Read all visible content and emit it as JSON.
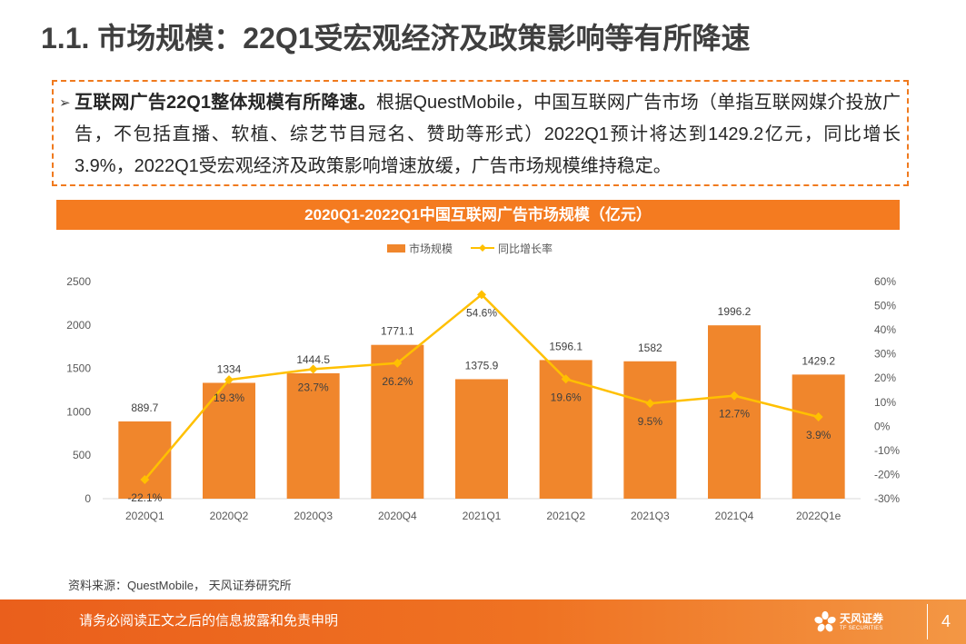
{
  "slide": {
    "title": "1.1. 市场规模：22Q1受宏观经济及政策影响等有所降速",
    "summary": {
      "bullet": "➢",
      "lead": "互联网广告22Q1整体规模有所降速。",
      "body": "根据QuestMobile，中国互联网广告市场（单指互联网媒介投放广告，不包括直播、软植、综艺节目冠名、赞助等形式）2022Q1预计将达到1429.2亿元，同比增长3.9%，2022Q1受宏观经济及政策影响增速放缓，广告市场规模维持稳定。"
    },
    "source": "资料来源：QuestMobile， 天风证券研究所"
  },
  "chart_data": {
    "type": "bar",
    "title": "2020Q1-2022Q1中国互联网广告市场规模（亿元）",
    "categories": [
      "2020Q1",
      "2020Q2",
      "2020Q3",
      "2020Q4",
      "2021Q1",
      "2021Q2",
      "2021Q3",
      "2021Q4",
      "2022Q1e"
    ],
    "series": [
      {
        "name": "市场规模",
        "type": "bar",
        "axis": "left",
        "values": [
          889.7,
          1334,
          1444.5,
          1771.1,
          1375.9,
          1596.1,
          1582,
          1996.2,
          1429.2
        ],
        "color": "#F0862C"
      },
      {
        "name": "同比增长率",
        "type": "line",
        "axis": "right",
        "unit": "%",
        "marker": "diamond",
        "values": [
          -22.1,
          19.3,
          23.7,
          26.2,
          54.6,
          19.6,
          9.5,
          12.7,
          3.9
        ],
        "color": "#FFC000"
      }
    ],
    "xlabel": "",
    "ylabel": "",
    "ylim": [
      0,
      2500
    ],
    "yticks": [
      0,
      500,
      1000,
      1500,
      2000,
      2500
    ],
    "y2lim": [
      -30,
      60
    ],
    "y2ticks": [
      -30,
      -20,
      -10,
      0,
      10,
      20,
      30,
      40,
      50,
      60
    ],
    "grid": false,
    "legend_position": "top-center"
  },
  "footer": {
    "disclaimer": "请务必阅读正文之后的信息披露和免责申明",
    "logo_icon": "tf-flower-logo-icon",
    "logo_name": "天风证券",
    "logo_subtitle": "TF SECURITIES",
    "page_number": "4"
  },
  "colors": {
    "accent": "#F07A1E",
    "title_bar": "#F47B20",
    "title_text": "#3F3F3F",
    "axis_text": "#595959",
    "label_text": "#404040",
    "axis_line": "#D9D9D9"
  }
}
